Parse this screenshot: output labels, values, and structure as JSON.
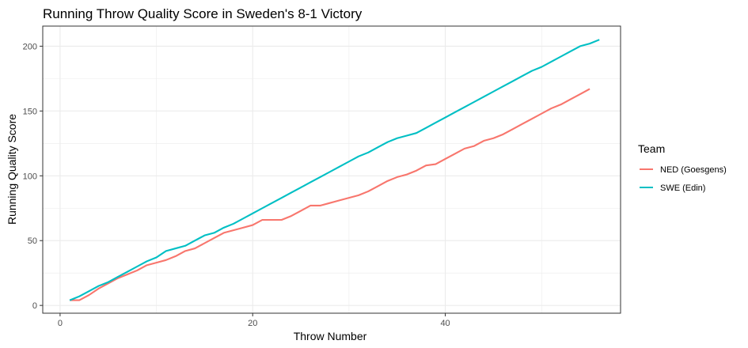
{
  "chart_data": {
    "type": "line",
    "title": "Running Throw Quality Score in Sweden's 8-1 Victory",
    "xlabel": "Throw Number",
    "ylabel": "Running Quality Score",
    "xlim": [
      -1.8,
      58.2
    ],
    "ylim": [
      -6,
      215.5
    ],
    "x_ticks": [
      0,
      20,
      40
    ],
    "x_tick_labels": [
      "0",
      "20",
      "40"
    ],
    "y_ticks": [
      0,
      50,
      100,
      150,
      200
    ],
    "y_tick_labels": [
      "0",
      "50",
      "100",
      "150",
      "200"
    ],
    "grid": true,
    "legend": {
      "title": "Team",
      "position": "right"
    },
    "series": [
      {
        "name": "NED (Goesgens)",
        "color": "#F8766D",
        "points": [
          [
            1,
            4
          ],
          [
            2,
            4
          ],
          [
            3,
            8
          ],
          [
            4,
            13
          ],
          [
            5,
            17
          ],
          [
            6,
            21
          ],
          [
            7,
            24
          ],
          [
            8,
            27
          ],
          [
            9,
            31
          ],
          [
            10,
            33
          ],
          [
            11,
            35
          ],
          [
            12,
            38
          ],
          [
            13,
            42
          ],
          [
            14,
            44
          ],
          [
            15,
            48
          ],
          [
            16,
            52
          ],
          [
            17,
            56
          ],
          [
            18,
            58
          ],
          [
            19,
            60
          ],
          [
            20,
            62
          ],
          [
            21,
            66
          ],
          [
            22,
            66
          ],
          [
            23,
            66
          ],
          [
            24,
            69
          ],
          [
            25,
            73
          ],
          [
            26,
            77
          ],
          [
            27,
            77
          ],
          [
            28,
            79
          ],
          [
            29,
            81
          ],
          [
            30,
            83
          ],
          [
            31,
            85
          ],
          [
            32,
            88
          ],
          [
            33,
            92
          ],
          [
            34,
            96
          ],
          [
            35,
            99
          ],
          [
            36,
            101
          ],
          [
            37,
            104
          ],
          [
            38,
            108
          ],
          [
            39,
            109
          ],
          [
            40,
            113
          ],
          [
            41,
            117
          ],
          [
            42,
            121
          ],
          [
            43,
            123
          ],
          [
            44,
            127
          ],
          [
            45,
            129
          ],
          [
            46,
            132
          ],
          [
            47,
            136
          ],
          [
            48,
            140
          ],
          [
            49,
            144
          ],
          [
            50,
            148
          ],
          [
            51,
            152
          ],
          [
            52,
            155
          ],
          [
            53,
            159
          ],
          [
            54,
            163
          ],
          [
            55,
            167
          ]
        ]
      },
      {
        "name": "SWE (Edin)",
        "color": "#00BFC4",
        "points": [
          [
            1,
            4
          ],
          [
            2,
            7
          ],
          [
            3,
            11
          ],
          [
            4,
            15
          ],
          [
            5,
            18
          ],
          [
            6,
            22
          ],
          [
            7,
            26
          ],
          [
            8,
            30
          ],
          [
            9,
            34
          ],
          [
            10,
            37
          ],
          [
            11,
            42
          ],
          [
            12,
            44
          ],
          [
            13,
            46
          ],
          [
            14,
            50
          ],
          [
            15,
            54
          ],
          [
            16,
            56
          ],
          [
            17,
            60
          ],
          [
            18,
            63
          ],
          [
            19,
            67
          ],
          [
            20,
            71
          ],
          [
            21,
            75
          ],
          [
            22,
            79
          ],
          [
            23,
            83
          ],
          [
            24,
            87
          ],
          [
            25,
            91
          ],
          [
            26,
            95
          ],
          [
            27,
            99
          ],
          [
            28,
            103
          ],
          [
            29,
            107
          ],
          [
            30,
            111
          ],
          [
            31,
            115
          ],
          [
            32,
            118
          ],
          [
            33,
            122
          ],
          [
            34,
            126
          ],
          [
            35,
            129
          ],
          [
            36,
            131
          ],
          [
            37,
            133
          ],
          [
            38,
            137
          ],
          [
            39,
            141
          ],
          [
            40,
            145
          ],
          [
            41,
            149
          ],
          [
            42,
            153
          ],
          [
            43,
            157
          ],
          [
            44,
            161
          ],
          [
            45,
            165
          ],
          [
            46,
            169
          ],
          [
            47,
            173
          ],
          [
            48,
            177
          ],
          [
            49,
            181
          ],
          [
            50,
            184
          ],
          [
            51,
            188
          ],
          [
            52,
            192
          ],
          [
            53,
            196
          ],
          [
            54,
            200
          ],
          [
            55,
            202
          ],
          [
            56,
            205
          ]
        ]
      }
    ]
  }
}
